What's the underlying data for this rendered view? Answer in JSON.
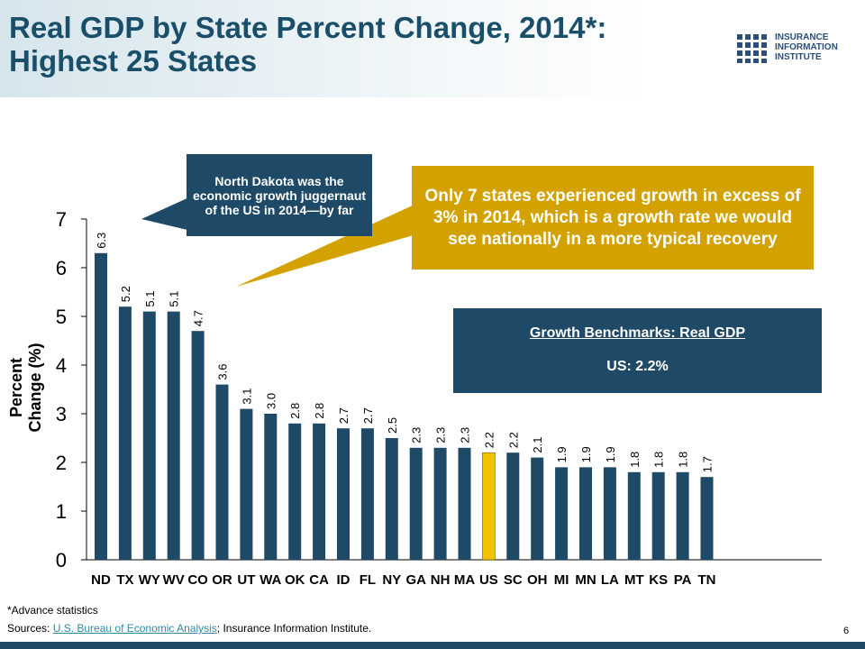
{
  "header": {
    "title_line1": "Real GDP by State Percent Change, 2014*:",
    "title_line2": "Highest 25 States"
  },
  "logo": {
    "line1": "INSURANCE",
    "line2": "INFORMATION",
    "line3": "INSTITUTE"
  },
  "callouts": {
    "north_dakota": "North Dakota was the economic growth juggernaut of the US in 2014—by far",
    "seven_states": "Only 7 states experienced growth in excess of 3% in 2014, which is a growth rate we would see nationally in a more typical recovery"
  },
  "benchmark": {
    "title": "Growth Benchmarks: Real GDP",
    "us": "US: 2.2%"
  },
  "footer": {
    "footnote": "*Advance statistics",
    "sources_prefix": "Sources: ",
    "sources_link": "U.S. Bureau of Economic Analysis",
    "sources_suffix": "; Insurance Information Institute.",
    "page_number": "6"
  },
  "colors": {
    "bar": "#1f4a67",
    "highlight": "#f2c200",
    "title": "#1a4f6a"
  },
  "chart_data": {
    "type": "bar",
    "ylabel": "Percent Change (%)",
    "xlabel": "",
    "ylim": [
      0,
      7
    ],
    "yticks": [
      0,
      1,
      2,
      3,
      4,
      5,
      6,
      7
    ],
    "grid": false,
    "categories": [
      "ND",
      "TX",
      "WY",
      "WV",
      "CO",
      "OR",
      "UT",
      "WA",
      "OK",
      "CA",
      "ID",
      "FL",
      "NY",
      "GA",
      "NH",
      "MA",
      "US",
      "SC",
      "OH",
      "MI",
      "MN",
      "LA",
      "MT",
      "KS",
      "PA",
      "TN"
    ],
    "values": [
      6.3,
      5.2,
      5.1,
      5.1,
      4.7,
      3.6,
      3.1,
      3.0,
      2.8,
      2.8,
      2.7,
      2.7,
      2.5,
      2.3,
      2.3,
      2.3,
      2.2,
      2.2,
      2.1,
      1.9,
      1.9,
      1.9,
      1.8,
      1.8,
      1.8,
      1.7
    ],
    "data_labels": [
      "6.3",
      "5.2",
      "5.1",
      "5.1",
      "4.7",
      "3.6",
      "3.1",
      "3.0",
      "2.8",
      "2.8",
      "2.7",
      "2.7",
      "2.5",
      "2.3",
      "2.3",
      "2.3",
      "2.2",
      "2.2",
      "2.1",
      "1.9",
      "1.9",
      "1.9",
      "1.8",
      "1.8",
      "1.8",
      "1.7"
    ],
    "highlight_category": "US"
  }
}
